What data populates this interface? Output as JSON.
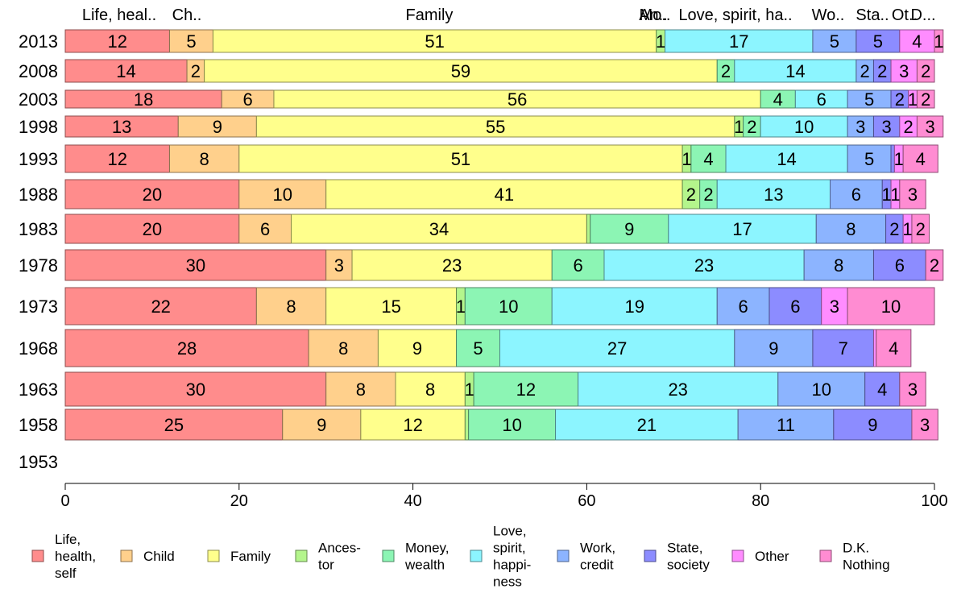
{
  "chart_data": {
    "type": "bar",
    "orientation": "horizontal",
    "stacked": true,
    "title": "",
    "xlabel": "",
    "ylabel": "",
    "xlim": [
      0,
      100
    ],
    "x_ticks": [
      "0",
      "20",
      "40",
      "60",
      "80",
      "100"
    ],
    "grid": false,
    "legend_position": "bottom",
    "categories": [
      "2013",
      "2008",
      "2003",
      "1998",
      "1993",
      "1988",
      "1983",
      "1978",
      "1973",
      "1968",
      "1963",
      "1958",
      "1953"
    ],
    "top_labels": [
      "Life, heal..",
      "Ch..",
      "Family",
      "An..",
      "Mo..",
      "Love, spirit, ha..",
      "Wo..",
      "Sta..",
      "Ot..",
      "D..."
    ],
    "series": [
      {
        "name": "Life,\nhealth,\nself",
        "color": "#ff8c8c",
        "values": [
          12,
          14,
          18,
          13,
          12,
          20,
          20,
          30,
          22,
          28,
          30,
          25,
          null
        ]
      },
      {
        "name": "Child",
        "color": "#ffd08c",
        "values": [
          5,
          2,
          6,
          9,
          8,
          10,
          6,
          3,
          8,
          8,
          8,
          9,
          null
        ]
      },
      {
        "name": "Family",
        "color": "#ffff8c",
        "values": [
          51,
          59,
          56,
          55,
          51,
          41,
          34,
          23,
          15,
          9,
          8,
          12,
          null
        ]
      },
      {
        "name": "Ances-\ntor",
        "color": "#b4f58c",
        "values": [
          1,
          0,
          0,
          1,
          1,
          2,
          0.4,
          0,
          1,
          0,
          1,
          0.4,
          null
        ]
      },
      {
        "name": "Money,\nwealth",
        "color": "#8cf5b4",
        "values": [
          0,
          2,
          4,
          2,
          4,
          2,
          9,
          6,
          10,
          5,
          12,
          10,
          null
        ]
      },
      {
        "name": "Love,\nspirit,\nhappi-\nness",
        "color": "#8cf5ff",
        "values": [
          17,
          14,
          6,
          10,
          14,
          13,
          17,
          23,
          19,
          27,
          23,
          21,
          null
        ]
      },
      {
        "name": "Work,\ncredit",
        "color": "#8cb4ff",
        "values": [
          5,
          2,
          5,
          3,
          5,
          6,
          8,
          8,
          6,
          9,
          10,
          11,
          null
        ]
      },
      {
        "name": "State,\nsociety",
        "color": "#8c8cff",
        "values": [
          5,
          2,
          2,
          3,
          0.4,
          1,
          2,
          6,
          6,
          7,
          4,
          9,
          null
        ]
      },
      {
        "name": "Other",
        "color": "#ff8cff",
        "values": [
          4,
          3,
          1,
          2,
          1,
          1,
          1,
          0,
          3,
          0.3,
          0,
          0,
          null
        ]
      },
      {
        "name": "D.K.\nNothing",
        "color": "#ff8cd2",
        "values": [
          1,
          2,
          2,
          3,
          4,
          3,
          2,
          2,
          10,
          4,
          3,
          3,
          null
        ]
      }
    ]
  }
}
